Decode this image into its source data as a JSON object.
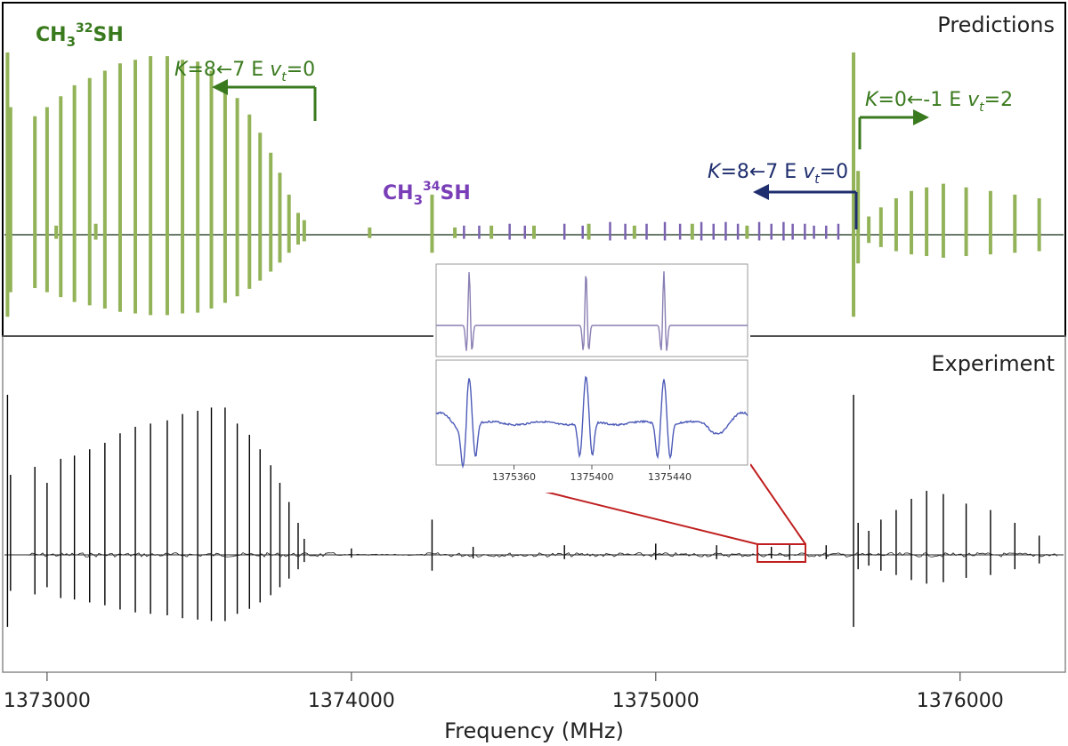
{
  "chart_data": {
    "type": "line",
    "xlabel": "Frequency (MHz)",
    "xlim": [
      1372860,
      1376340
    ],
    "xticks": [
      1373000,
      1374000,
      1375000,
      1376000
    ],
    "xtick_labels": [
      "1373000",
      "1374000",
      "1375000",
      "1376000"
    ],
    "panels": [
      {
        "label": "Predictions",
        "ylim": [
          -1.05,
          1.05
        ],
        "series": [
          {
            "name": "CH3 32SH",
            "color": "#93b359",
            "lines": [
              {
                "x": 1372870,
                "h": 1.0
              },
              {
                "x": 1372880,
                "h": 0.7
              },
              {
                "x": 1372960,
                "h": 0.65
              },
              {
                "x": 1373000,
                "h": 0.7
              },
              {
                "x": 1373045,
                "h": 0.76
              },
              {
                "x": 1373090,
                "h": 0.82
              },
              {
                "x": 1373140,
                "h": 0.86
              },
              {
                "x": 1373190,
                "h": 0.9
              },
              {
                "x": 1373240,
                "h": 0.94
              },
              {
                "x": 1373290,
                "h": 0.96
              },
              {
                "x": 1373340,
                "h": 0.98
              },
              {
                "x": 1373395,
                "h": 0.98
              },
              {
                "x": 1373445,
                "h": 0.96
              },
              {
                "x": 1373495,
                "h": 0.95
              },
              {
                "x": 1373540,
                "h": 0.9
              },
              {
                "x": 1373585,
                "h": 0.83
              },
              {
                "x": 1373625,
                "h": 0.75
              },
              {
                "x": 1373665,
                "h": 0.66
              },
              {
                "x": 1373700,
                "h": 0.56
              },
              {
                "x": 1373735,
                "h": 0.45
              },
              {
                "x": 1373765,
                "h": 0.34
              },
              {
                "x": 1373795,
                "h": 0.22
              },
              {
                "x": 1373825,
                "h": 0.12
              },
              {
                "x": 1373845,
                "h": 0.08
              },
              {
                "x": 1374265,
                "h": 0.22
              },
              {
                "x": 1375650,
                "h": 1.0
              },
              {
                "x": 1375665,
                "h": 0.35
              },
              {
                "x": 1375700,
                "h": 0.1
              },
              {
                "x": 1375740,
                "h": 0.15
              },
              {
                "x": 1375790,
                "h": 0.2
              },
              {
                "x": 1375840,
                "h": 0.24
              },
              {
                "x": 1375890,
                "h": 0.26
              },
              {
                "x": 1375945,
                "h": 0.28
              },
              {
                "x": 1376020,
                "h": 0.26
              },
              {
                "x": 1376100,
                "h": 0.24
              },
              {
                "x": 1376180,
                "h": 0.22
              },
              {
                "x": 1376260,
                "h": 0.2
              },
              {
                "x": 1373030,
                "h": 0.05
              },
              {
                "x": 1373160,
                "h": 0.06
              },
              {
                "x": 1374060,
                "h": 0.04
              },
              {
                "x": 1374340,
                "h": 0.04
              },
              {
                "x": 1374460,
                "h": 0.05
              },
              {
                "x": 1374600,
                "h": 0.05
              },
              {
                "x": 1374780,
                "h": 0.06
              },
              {
                "x": 1374930,
                "h": 0.05
              },
              {
                "x": 1375120,
                "h": 0.06
              },
              {
                "x": 1375300,
                "h": 0.05
              }
            ]
          },
          {
            "name": "CH3 34SH",
            "color": "#7a62b0",
            "lines": [
              {
                "x": 1374370,
                "h": 0.05
              },
              {
                "x": 1374420,
                "h": 0.05
              },
              {
                "x": 1374520,
                "h": 0.06
              },
              {
                "x": 1374570,
                "h": 0.05
              },
              {
                "x": 1374700,
                "h": 0.06
              },
              {
                "x": 1374760,
                "h": 0.05
              },
              {
                "x": 1374850,
                "h": 0.07
              },
              {
                "x": 1374900,
                "h": 0.06
              },
              {
                "x": 1374970,
                "h": 0.06
              },
              {
                "x": 1375030,
                "h": 0.07
              },
              {
                "x": 1375080,
                "h": 0.06
              },
              {
                "x": 1375150,
                "h": 0.07
              },
              {
                "x": 1375190,
                "h": 0.06
              },
              {
                "x": 1375230,
                "h": 0.07
              },
              {
                "x": 1375270,
                "h": 0.06
              },
              {
                "x": 1375340,
                "h": 0.07
              },
              {
                "x": 1375380,
                "h": 0.06
              },
              {
                "x": 1375420,
                "h": 0.07
              },
              {
                "x": 1375450,
                "h": 0.06
              },
              {
                "x": 1375490,
                "h": 0.06
              },
              {
                "x": 1375520,
                "h": 0.05
              },
              {
                "x": 1375560,
                "h": 0.05
              },
              {
                "x": 1375600,
                "h": 0.06
              }
            ]
          }
        ]
      },
      {
        "label": "Experiment",
        "ylim": [
          -1.05,
          1.05
        ],
        "series": [
          {
            "name": "Experiment",
            "color": "#000000",
            "lines": [
              {
                "x": 1372870,
                "h": 1.0
              },
              {
                "x": 1372880,
                "h": 0.5
              },
              {
                "x": 1372960,
                "h": 0.55
              },
              {
                "x": 1373000,
                "h": 0.45
              },
              {
                "x": 1373045,
                "h": 0.6
              },
              {
                "x": 1373090,
                "h": 0.62
              },
              {
                "x": 1373140,
                "h": 0.66
              },
              {
                "x": 1373190,
                "h": 0.7
              },
              {
                "x": 1373240,
                "h": 0.76
              },
              {
                "x": 1373290,
                "h": 0.8
              },
              {
                "x": 1373340,
                "h": 0.82
              },
              {
                "x": 1373395,
                "h": 0.84
              },
              {
                "x": 1373445,
                "h": 0.88
              },
              {
                "x": 1373495,
                "h": 0.9
              },
              {
                "x": 1373540,
                "h": 0.92
              },
              {
                "x": 1373585,
                "h": 0.92
              },
              {
                "x": 1373625,
                "h": 0.82
              },
              {
                "x": 1373665,
                "h": 0.75
              },
              {
                "x": 1373700,
                "h": 0.66
              },
              {
                "x": 1373735,
                "h": 0.56
              },
              {
                "x": 1373765,
                "h": 0.45
              },
              {
                "x": 1373795,
                "h": 0.33
              },
              {
                "x": 1373825,
                "h": 0.2
              },
              {
                "x": 1373845,
                "h": 0.1
              },
              {
                "x": 1374265,
                "h": 0.22
              },
              {
                "x": 1375650,
                "h": 1.0
              },
              {
                "x": 1375665,
                "h": 0.2
              },
              {
                "x": 1375700,
                "h": 0.15
              },
              {
                "x": 1375740,
                "h": 0.22
              },
              {
                "x": 1375790,
                "h": 0.28
              },
              {
                "x": 1375840,
                "h": 0.35
              },
              {
                "x": 1375890,
                "h": 0.4
              },
              {
                "x": 1375945,
                "h": 0.38
              },
              {
                "x": 1376020,
                "h": 0.32
              },
              {
                "x": 1376100,
                "h": 0.28
              },
              {
                "x": 1376180,
                "h": 0.2
              },
              {
                "x": 1376260,
                "h": 0.12
              },
              {
                "x": 1374000,
                "h": 0.04
              },
              {
                "x": 1374400,
                "h": 0.05
              },
              {
                "x": 1374700,
                "h": 0.06
              },
              {
                "x": 1375000,
                "h": 0.07
              },
              {
                "x": 1375200,
                "h": 0.06
              },
              {
                "x": 1375380,
                "h": 0.05
              },
              {
                "x": 1375440,
                "h": 0.07
              },
              {
                "x": 1375560,
                "h": 0.06
              }
            ]
          }
        ]
      }
    ],
    "annotations": [
      {
        "species": "CH3 32SH",
        "formula_main": "CH",
        "sub": "3",
        "sup": "32",
        "tail": "SH",
        "color": "#3a7a1e"
      },
      {
        "species": "CH3 34SH",
        "formula_main": "CH",
        "sub": "3",
        "sup": "34",
        "tail": "SH",
        "color": "#7a3fb8"
      },
      {
        "transition": "K=8←7 E vt=0",
        "K": "K",
        "rel": "=8←7 E ",
        "v": "v",
        "vsub": "t",
        "vval": "=0",
        "direction": "left",
        "color": "#3a7a1e",
        "species": "CH3 32SH",
        "start_freq": 1373845
      },
      {
        "transition": "K=0←-1 E vt=2",
        "K": "K",
        "rel": "=0←-1 E ",
        "v": "v",
        "vsub": "t",
        "vval": "=2",
        "direction": "right",
        "color": "#3a7a1e",
        "species": "CH3 32SH",
        "start_freq": 1375665
      },
      {
        "transition": "K=8←7 E vt=0",
        "K": "K",
        "rel": "=8←7 E ",
        "v": "v",
        "vsub": "t",
        "vval": "=0",
        "direction": "left",
        "color": "#1f2e6e",
        "species": "CH3 34SH",
        "start_freq": 1375630
      }
    ],
    "inset": {
      "zoom_range": [
        1375320,
        1375480
      ],
      "xticks": [
        1375360,
        1375400,
        1375440
      ],
      "xtick_labels": [
        "1375360",
        "1375400",
        "1375440"
      ],
      "upper_color": "#8a7fb3",
      "lower_color": "#4d5bb8",
      "peaks": [
        1375337,
        1375397,
        1375437
      ]
    }
  }
}
